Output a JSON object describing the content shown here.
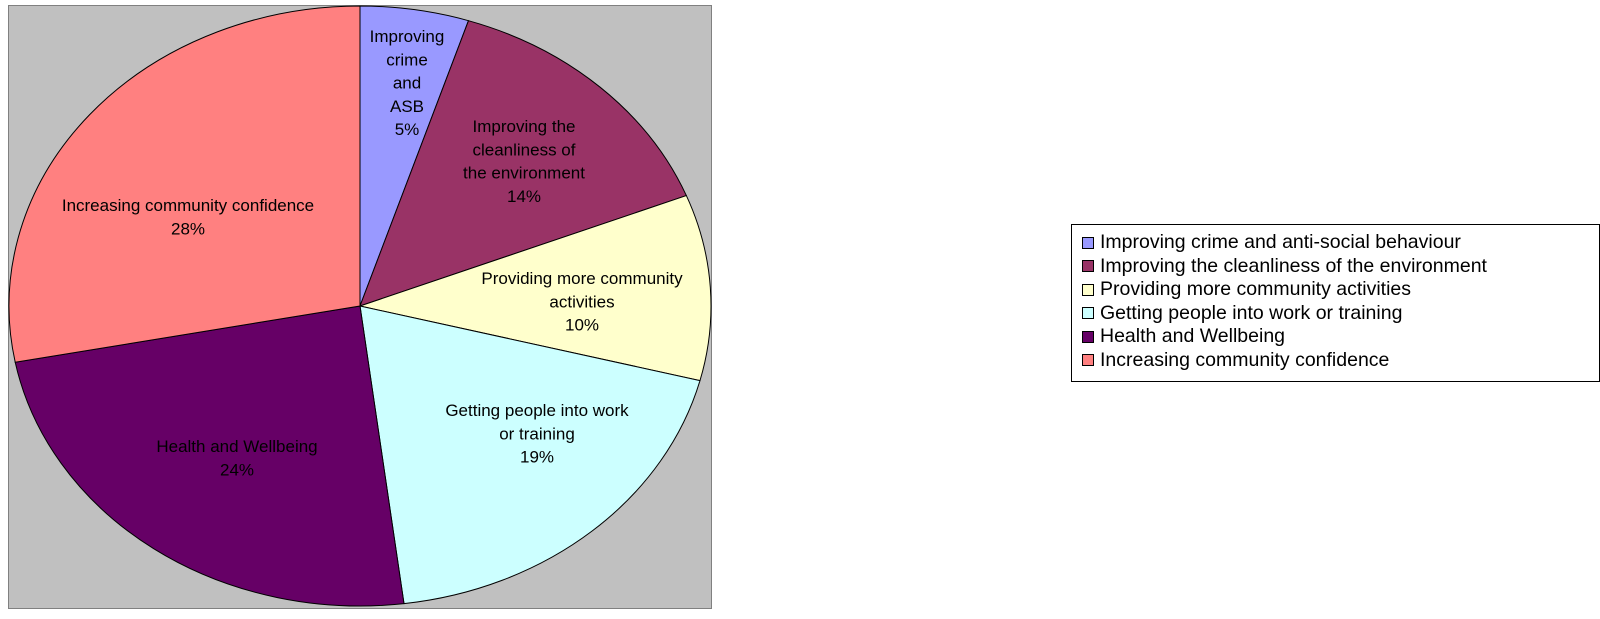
{
  "chart_data": {
    "type": "pie",
    "title": "",
    "slices": [
      {
        "label": "Improving crime and anti-social behaviour",
        "short_label": [
          "Improving",
          "crime",
          "and",
          "ASB"
        ],
        "percent_label": "5%",
        "value": 5,
        "color": "#9999ff"
      },
      {
        "label": "Improving the cleanliness of the environment",
        "short_label": [
          "Improving the",
          "cleanliness of",
          "the environment"
        ],
        "percent_label": "14%",
        "value": 14,
        "color": "#993366"
      },
      {
        "label": "Providing more community activities",
        "short_label": [
          "Providing more community",
          "activities"
        ],
        "percent_label": "10%",
        "value": 10,
        "color": "#ffffcc"
      },
      {
        "label": "Getting people into work or training",
        "short_label": [
          "Getting people into work",
          "or training"
        ],
        "percent_label": "19%",
        "value": 19,
        "color": "#ccffff"
      },
      {
        "label": "Health and Wellbeing",
        "short_label": [
          "Health and Wellbeing"
        ],
        "percent_label": "24%",
        "value": 24,
        "color": "#660066"
      },
      {
        "label": "Increasing community confidence",
        "short_label": [
          "Increasing community confidence"
        ],
        "percent_label": "28%",
        "value": 28,
        "color": "#ff8080"
      }
    ],
    "legend_position": "right",
    "start_angle_deg": 0,
    "direction": "clockwise"
  }
}
